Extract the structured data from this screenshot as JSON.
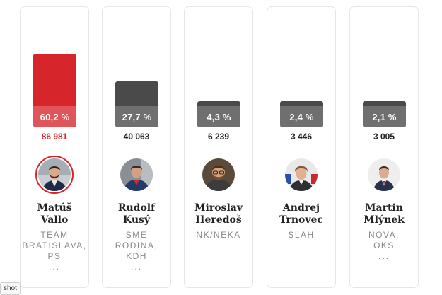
{
  "candidates": [
    {
      "name_line1": "Matúš",
      "name_line2": "Vallo",
      "party_lines": [
        "TEAM",
        "BRATISLAVA,",
        "PS"
      ],
      "more": "...",
      "percent_label": "60,2 %",
      "percent": 60.2,
      "votes": "86 981",
      "winner": true,
      "bar_color": "#d6262b",
      "pct_color": "#e0555a",
      "votes_color": "#d6262b"
    },
    {
      "name_line1": "Rudolf",
      "name_line2": "Kusý",
      "party_lines": [
        "SME",
        "RODINA,",
        "KDH"
      ],
      "more": "...",
      "percent_label": "27,7 %",
      "percent": 27.7,
      "votes": "40 063",
      "winner": false,
      "bar_color": "#4a4a4a",
      "pct_color": "#6f6f6f",
      "votes_color": "#222222"
    },
    {
      "name_line1": "Miroslav",
      "name_line2": "Heredoš",
      "party_lines": [
        "NK/NEKA"
      ],
      "more": "",
      "percent_label": "4,3 %",
      "percent": 4.3,
      "votes": "6 239",
      "winner": false,
      "bar_color": "#4a4a4a",
      "pct_color": "#6f6f6f",
      "votes_color": "#222222"
    },
    {
      "name_line1": "Andrej",
      "name_line2": "Trnovec",
      "party_lines": [
        "SĽAH"
      ],
      "more": "",
      "percent_label": "2,4 %",
      "percent": 2.4,
      "votes": "3 446",
      "winner": false,
      "bar_color": "#4a4a4a",
      "pct_color": "#6f6f6f",
      "votes_color": "#222222"
    },
    {
      "name_line1": "Martin",
      "name_line2": "Mlýnek",
      "party_lines": [
        "NOVA,",
        "OKS"
      ],
      "more": "...",
      "percent_label": "2,1 %",
      "percent": 2.1,
      "votes": "3 005",
      "winner": false,
      "bar_color": "#4a4a4a",
      "pct_color": "#6f6f6f",
      "votes_color": "#222222"
    }
  ],
  "tooltip": "shot"
}
